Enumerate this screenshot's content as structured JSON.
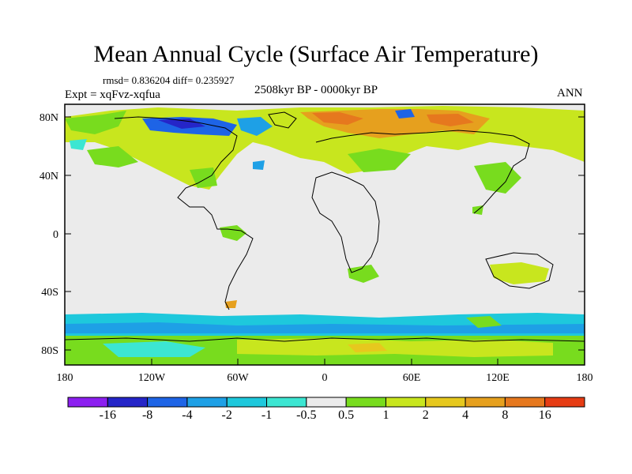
{
  "title": "Mean Annual Cycle (Surface Air Temperature)",
  "stats_line": "rmsd= 0.836204 diff= 0.235927",
  "experiment": "Expt = xqFvz-xqfua",
  "period": "2508kyr BP - 0000kyr BP",
  "season": "ANN",
  "axes": {
    "lat_ticks": [
      "80N",
      "40N",
      "0",
      "40S",
      "80S"
    ],
    "lon_ticks": [
      "180",
      "120W",
      "60W",
      "0",
      "60E",
      "120E",
      "180"
    ]
  },
  "colorbar": {
    "colors": [
      "#8c1ff0",
      "#2525c8",
      "#1e64e6",
      "#1ea0e6",
      "#1ec8dc",
      "#3ce6d2",
      "#ebebeb",
      "#78dc1e",
      "#c8e61e",
      "#e6c81e",
      "#e6a01e",
      "#e6781e",
      "#e63c14"
    ],
    "labels": [
      "-16",
      "-8",
      "-4",
      "-2",
      "-1",
      "-0.5",
      "0.5",
      "1",
      "2",
      "4",
      "8",
      "16"
    ]
  },
  "colors": {
    "background_field": "#ebebeb",
    "pos_weak": "#78dc1e",
    "pos_mid": "#c8e61e",
    "pos_strong": "#e6a01e",
    "pos_vstrong": "#e6781e",
    "neg_weak": "#3ce6d2",
    "neg_mid": "#1ea0e6",
    "neg_strong": "#1e64e6",
    "neg_vstrong": "#2525c8"
  }
}
